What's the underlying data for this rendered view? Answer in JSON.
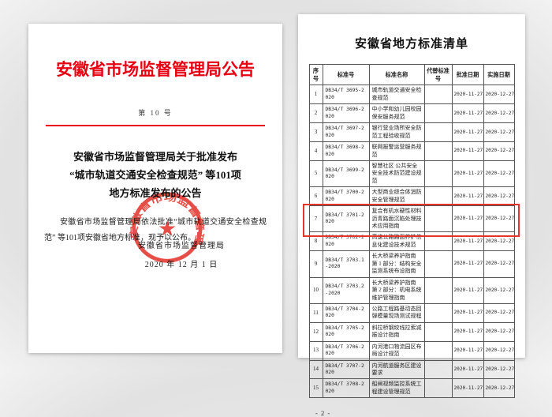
{
  "accent_red": "#e60012",
  "left_page": {
    "agency_title": "安徽省市场监督管理局公告",
    "doc_number": "第 10 号",
    "announcement_title_lines": [
      "安徽省市场监督管理局关于批准发布",
      "“城市轨道交通安全检查规范” 等101项",
      "地方标准发布的公告"
    ],
    "body_paragraph": "安徽省市场监督管理局依法批准“城市轨道交通安全检查规范” 等101项安徽省地方标准，现予以公布。",
    "seal_text": "安徽省市场监督管理局",
    "seal_star": "★",
    "signature": "安徽省市场监督管理局",
    "date": "2020 年 12 月 1 日"
  },
  "right_page": {
    "title": "安徽省地方标准清单",
    "page_number": "- 2 -",
    "table": {
      "headers": [
        "序号",
        "标准号",
        "标准名称",
        "代替标准号",
        "批准日期",
        "实施日期"
      ],
      "highlighted_row": 7,
      "highlight_color": "#e8332a",
      "rows": [
        {
          "no": "1",
          "code": "DB34/T 3695-2020",
          "name": "城市轨道交通安全检查规范",
          "replaces": "",
          "approved": "2020-11-27",
          "effective": "2020-12-27"
        },
        {
          "no": "2",
          "code": "DB34/T 3696-2020",
          "name": "中小学和幼儿园校园保安服务规范",
          "replaces": "",
          "approved": "2020-11-27",
          "effective": "2020-12-27"
        },
        {
          "no": "3",
          "code": "DB34/T 3697-2020",
          "name": "银行营业场所安全防范工程验收规范",
          "replaces": "",
          "approved": "2020-11-27",
          "effective": "2020-12-27"
        },
        {
          "no": "4",
          "code": "DB34/T 3698-2020",
          "name": "联网报警运营服务规范",
          "replaces": "",
          "approved": "2020-11-27",
          "effective": "2020-12-27"
        },
        {
          "no": "5",
          "code": "DB34/T 3699-2020",
          "name": "智慧社区 公共安全 安全技术防范建设规范",
          "replaces": "",
          "approved": "2020-11-27",
          "effective": "2020-12-27"
        },
        {
          "no": "6",
          "code": "DB34/T 3700-2020",
          "name": "大型商业综合体消防安全管理规范",
          "replaces": "",
          "approved": "2020-11-27",
          "effective": "2020-12-27"
        },
        {
          "no": "7",
          "code": "DB34/T 3701-2020",
          "name": "复合有机水硬性材料沥青路面沉陷处理技术应用指南",
          "replaces": "",
          "approved": "2020-11-27",
          "effective": "2020-12-27"
        },
        {
          "no": "8",
          "code": "DB34/T 3702-2020",
          "name": "高速公路路面养护信息化建设技术规范",
          "replaces": "",
          "approved": "2020-11-27",
          "effective": "2020-12-27"
        },
        {
          "no": "9",
          "code": "DB34/T 3703.1-2020",
          "name": "长大桥梁养护指南 第 1 部分：结构安全监测系统布设指南",
          "replaces": "",
          "approved": "2020-11-27",
          "effective": "2020-12-27"
        },
        {
          "no": "10",
          "code": "DB34/T 3703.2-2020",
          "name": "长大桥梁养护指南 第 2 部分：机电系统维护管理指南",
          "replaces": "",
          "approved": "2020-11-27",
          "effective": "2020-12-27"
        },
        {
          "no": "11",
          "code": "DB34/T 3704-2020",
          "name": "公路工程路基动态回弹模量现场测试规程",
          "replaces": "",
          "approved": "2020-11-27",
          "effective": "2020-12-27"
        },
        {
          "no": "12",
          "code": "DB34/T 3705-2020",
          "name": "斜拉桥钢绞线拉索减振设计指南",
          "replaces": "",
          "approved": "2020-11-27",
          "effective": "2020-12-27"
        },
        {
          "no": "13",
          "code": "DB34/T 3706-2020",
          "name": "内河港口物流园区布局设计规范",
          "replaces": "",
          "approved": "2020-11-27",
          "effective": "2020-12-27"
        },
        {
          "no": "14",
          "code": "DB34/T 3707-2020",
          "name": "内河航道服务区建设要求",
          "replaces": "",
          "approved": "2020-11-27",
          "effective": "2020-12-27"
        },
        {
          "no": "15",
          "code": "DB34/T 3708-2020",
          "name": "船闸视频监控系统工程建设管理规范",
          "replaces": "",
          "approved": "2020-11-27",
          "effective": "2020-12-27"
        }
      ]
    }
  }
}
